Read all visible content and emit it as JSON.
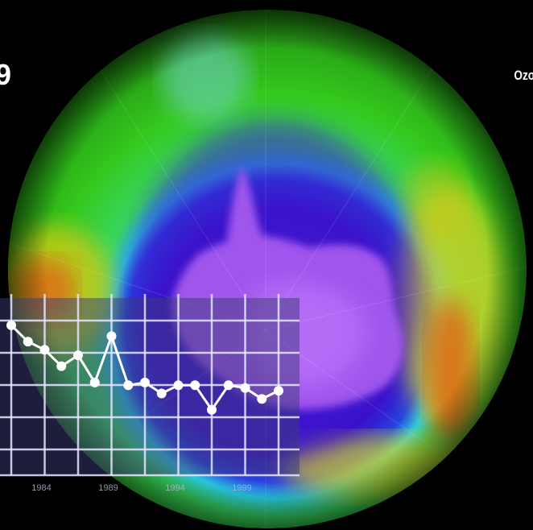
{
  "overlay_text": {
    "left_fragment": "9",
    "right_fragment": "Ozo"
  },
  "colors": {
    "background": "#000000",
    "hole_core": "#3a10c8",
    "antarctica": "#a85cf0",
    "ring_cyan": "#28c8e0",
    "ring_green": "#34d020",
    "ring_yellow": "#d8d020",
    "ring_orange": "#e07818",
    "chart_line": "#ffffff",
    "chart_panel": "#3c3c78"
  },
  "chart_data": {
    "type": "line",
    "x_tick_labels": [
      "1984",
      "1989",
      "1994",
      "1999"
    ],
    "values": [
      9.5,
      8.9,
      8.6,
      8.0,
      8.4,
      7.4,
      9.1,
      7.3,
      7.4,
      7.0,
      7.3,
      7.3,
      6.4,
      7.3,
      7.2,
      6.8,
      7.1
    ],
    "ylim": [
      4.0,
      10.5
    ],
    "grid": true,
    "title": "",
    "xlabel": "",
    "ylabel": ""
  }
}
